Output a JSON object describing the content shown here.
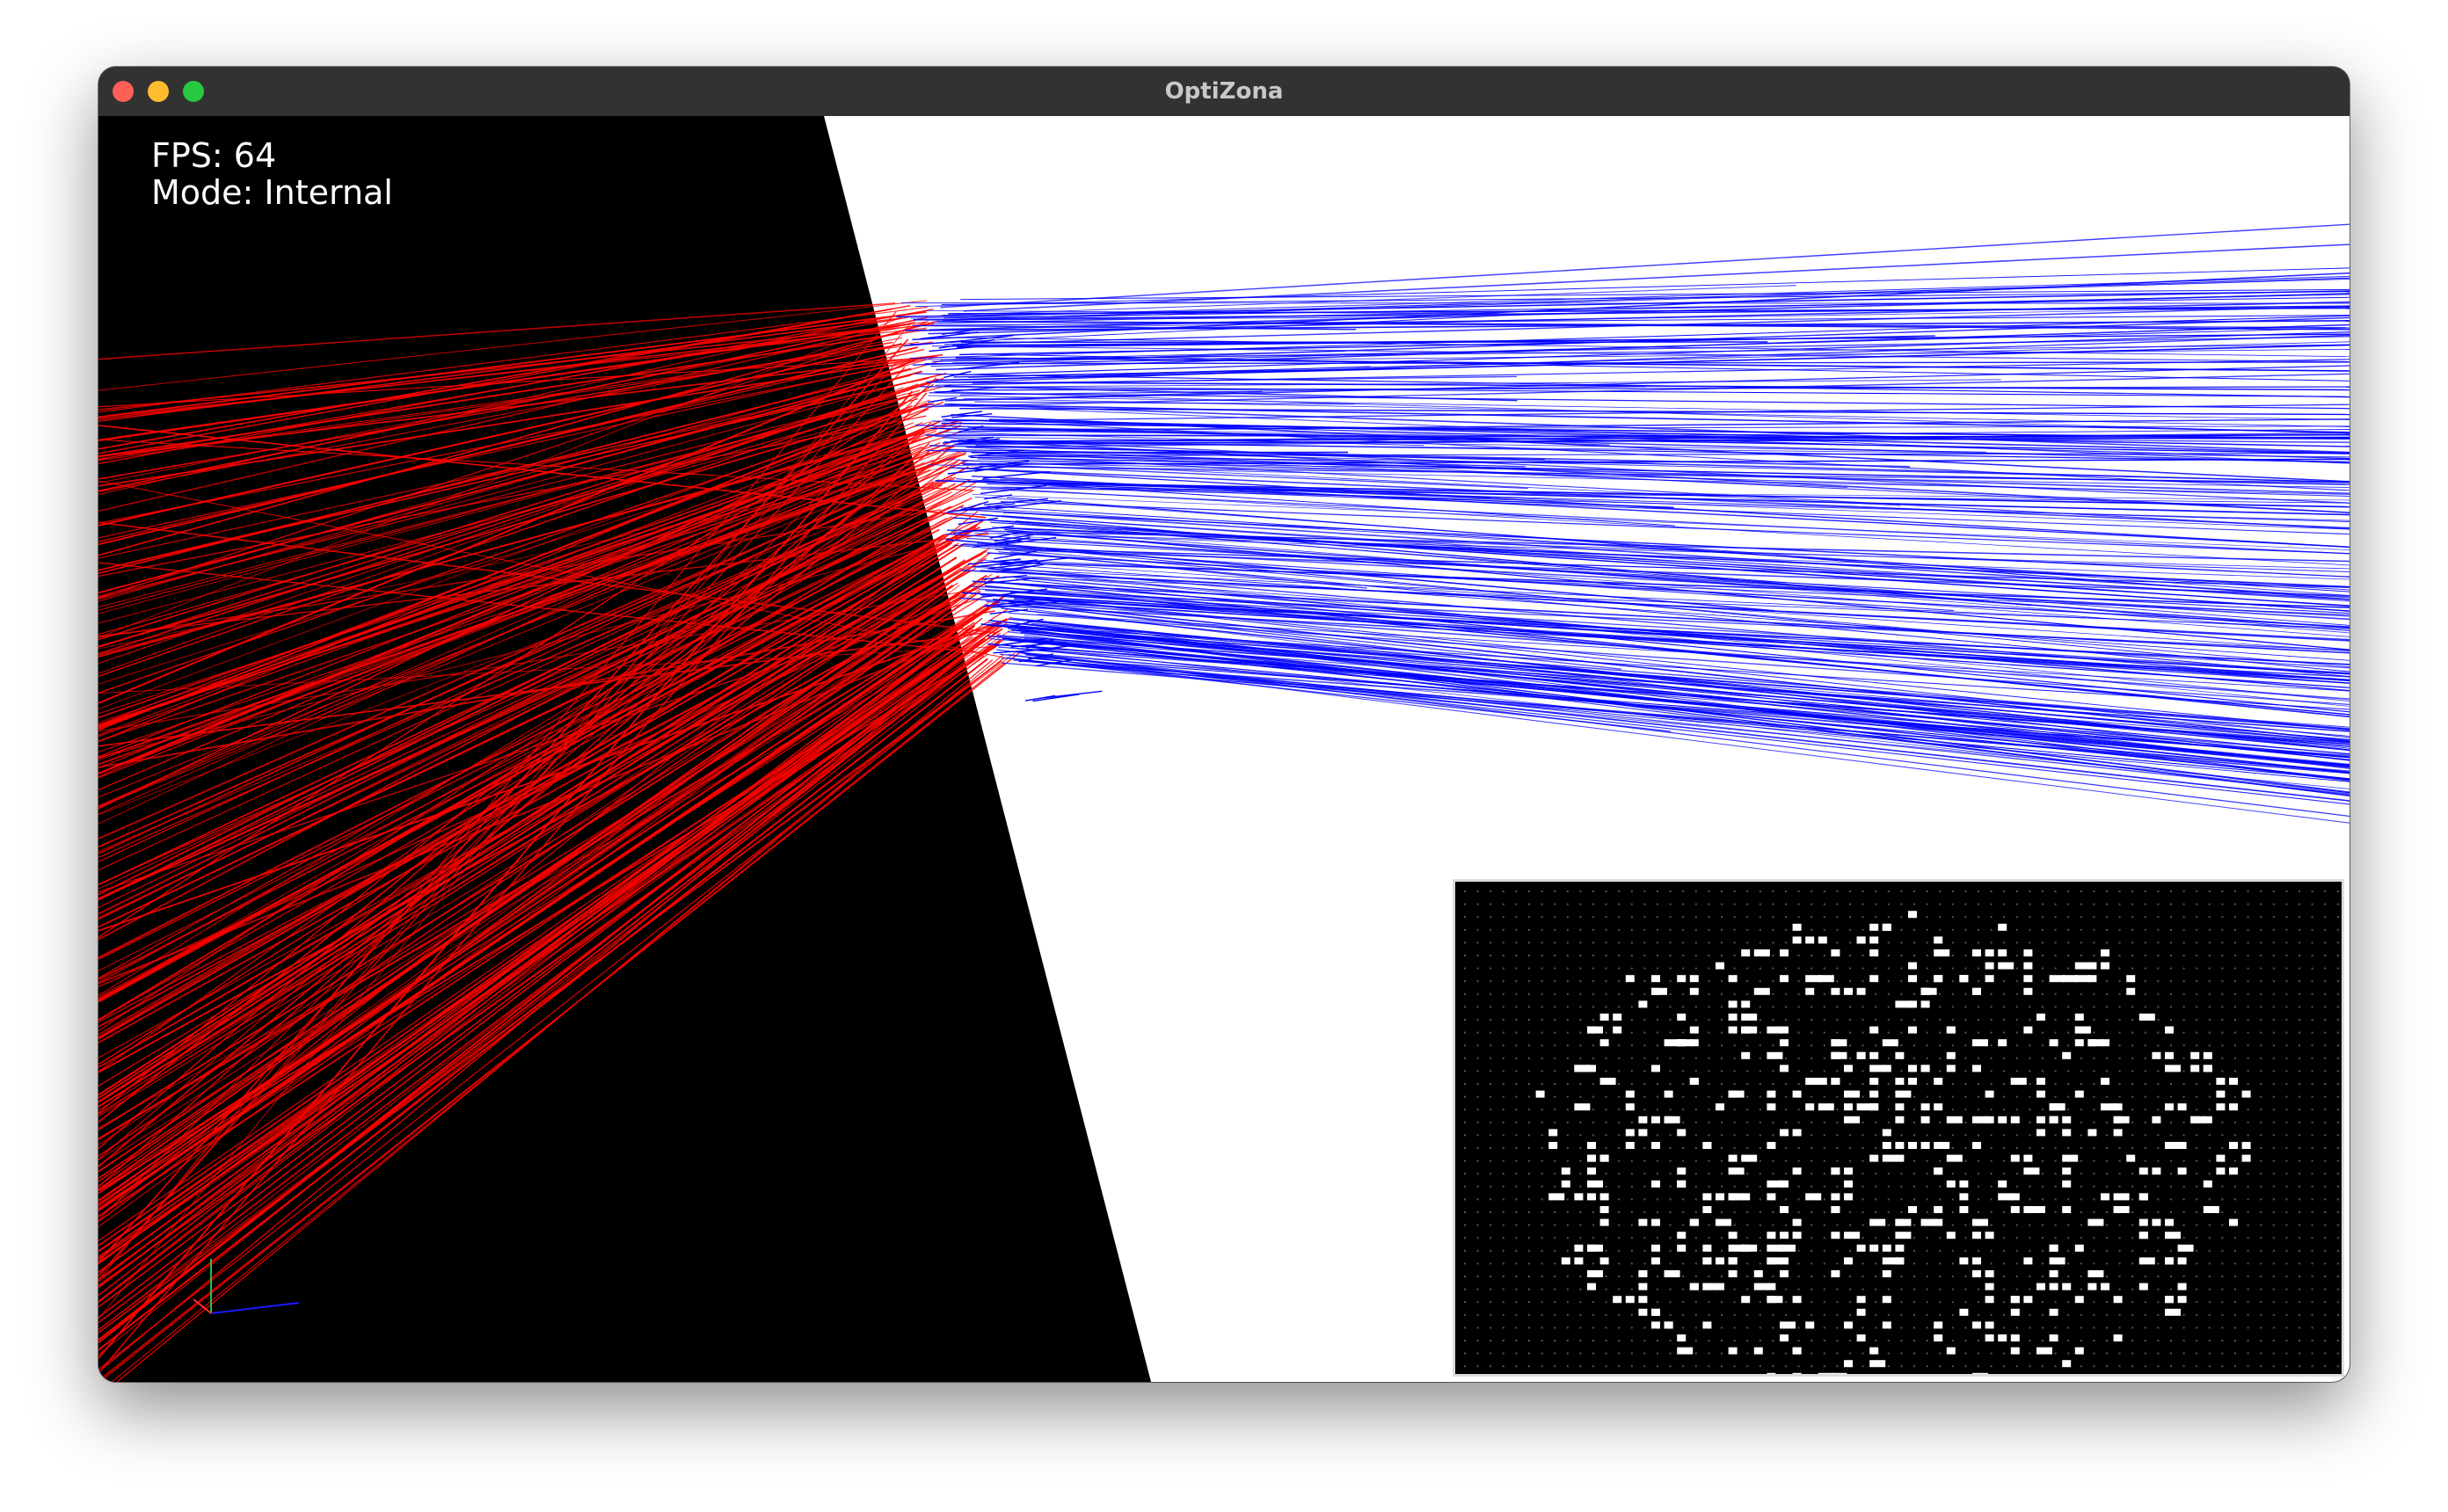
{
  "window": {
    "title": "OptiZona",
    "controls": {
      "close": "close-button",
      "minimize": "minimize-button",
      "zoom": "zoom-button"
    }
  },
  "hud": {
    "fps_label": "FPS: 64",
    "mode_label": "Mode: Internal"
  },
  "scene": {
    "background_left": "#000000",
    "background_right": "#ffffff",
    "incident_ray_color": "#ff0000",
    "transmitted_ray_color": "#0000ff"
  },
  "inset": {
    "background": "#000000",
    "dot_color": "#ffffff",
    "grid_dot_color": "#9a9a9a"
  },
  "axes_gizmo": {
    "x_color": "#1a1aff",
    "y_color": "#30c030",
    "z_color": "#ff3030"
  }
}
